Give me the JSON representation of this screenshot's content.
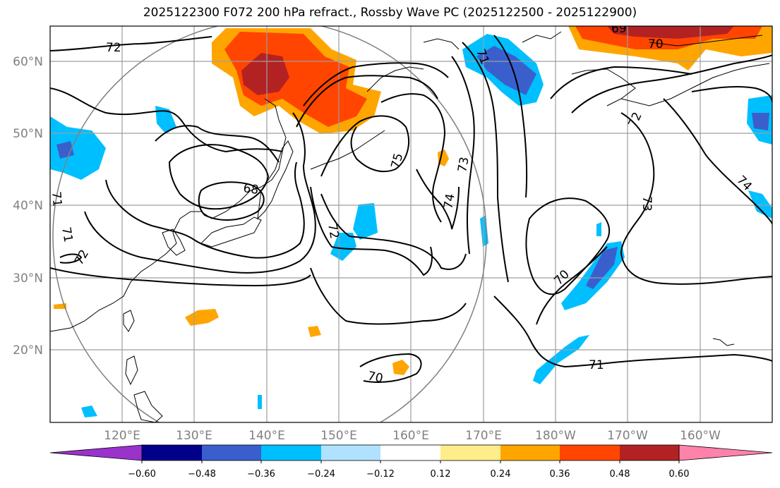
{
  "title": "2025122300 F072 200 hPa refract., Rossby Wave PC (2025122500 - 2025122900)",
  "map": {
    "lat_labels": [
      "60°N",
      "50°N",
      "40°N",
      "30°N",
      "20°N"
    ],
    "lon_labels": [
      "120°E",
      "130°E",
      "140°E",
      "150°E",
      "160°E",
      "170°E",
      "180°W",
      "170°W",
      "160°W"
    ],
    "contour_labels": [
      "72",
      "69",
      "70",
      "71",
      "72",
      "73",
      "75",
      "74",
      "68",
      "72",
      "71",
      "71",
      "72",
      "70",
      "74",
      "73",
      "70",
      "71"
    ]
  },
  "colorbar": {
    "tick_labels": [
      "−0.60",
      "−0.48",
      "−0.36",
      "−0.24",
      "−0.12",
      "0.12",
      "0.24",
      "0.36",
      "0.48",
      "0.60"
    ],
    "colors": [
      "#9933cc",
      "#00008b",
      "#3a5fcd",
      "#00bfff",
      "#b0e2ff",
      "#ffffff",
      "#ffec8b",
      "#ffa500",
      "#ff4500",
      "#b22222",
      "#ff82ab"
    ]
  }
}
